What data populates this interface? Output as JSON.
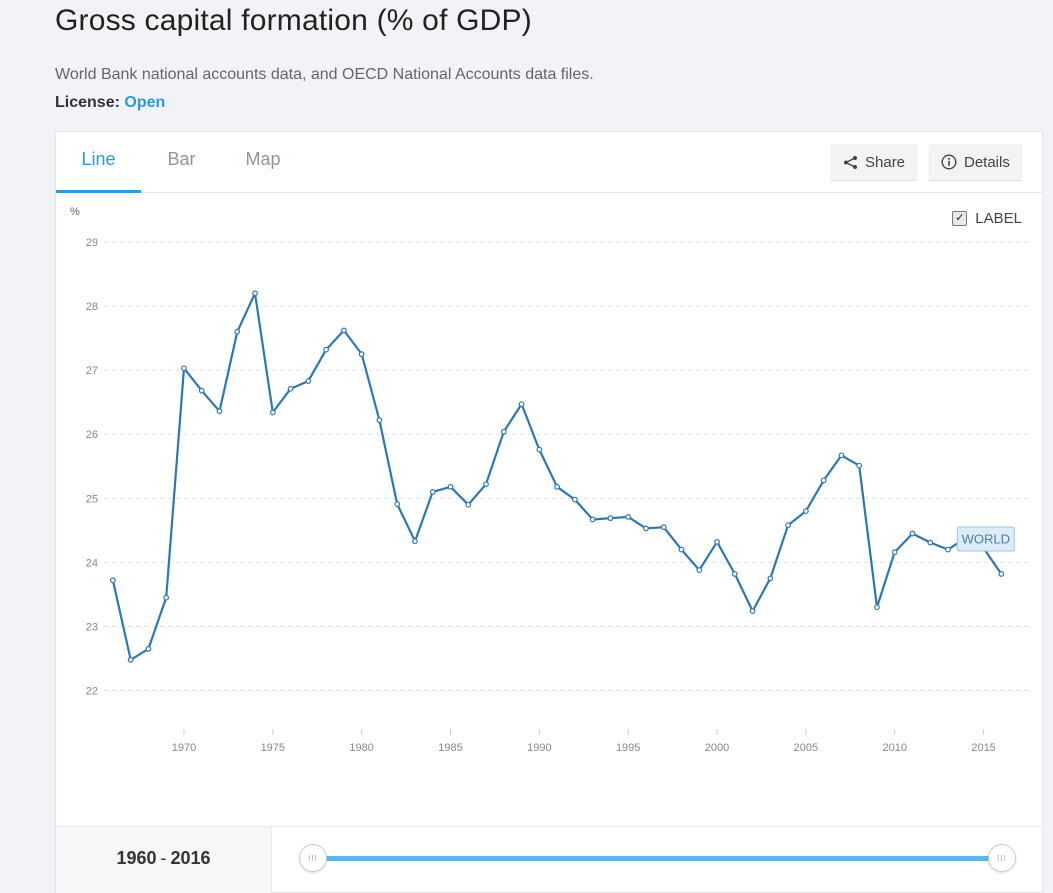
{
  "header": {
    "title": "Gross capital formation (% of GDP)",
    "source": "World Bank national accounts data, and OECD National Accounts data files.",
    "license_label": "License:",
    "license_value": "Open"
  },
  "tabs": [
    {
      "label": "Line",
      "active": true
    },
    {
      "label": "Bar",
      "active": false
    },
    {
      "label": "Map",
      "active": false
    }
  ],
  "actions": {
    "share_label": "Share",
    "share_icon": "share-icon",
    "details_label": "Details",
    "details_icon": "info-icon"
  },
  "label_toggle": {
    "label": "LABEL",
    "checked": true
  },
  "range": {
    "start": "1960",
    "end": "2016",
    "separator": "-"
  },
  "colors": {
    "accent": "#2d9ae0",
    "line": "#2e77b1",
    "slider": "#5db5ea"
  },
  "chart_data": {
    "type": "line",
    "ylabel": "%",
    "ylim": [
      21.4,
      29
    ],
    "xlim": [
      1965.5,
      2017.5
    ],
    "yticks": [
      22,
      23,
      24,
      25,
      26,
      27,
      28,
      29
    ],
    "xticks": [
      1970,
      1975,
      1980,
      1985,
      1990,
      1995,
      2000,
      2005,
      2010,
      2015
    ],
    "grid": true,
    "series": [
      {
        "name": "WORLD",
        "x": [
          1966,
          1967,
          1968,
          1969,
          1970,
          1971,
          1972,
          1973,
          1974,
          1975,
          1976,
          1977,
          1978,
          1979,
          1980,
          1981,
          1982,
          1983,
          1984,
          1985,
          1986,
          1987,
          1988,
          1989,
          1990,
          1991,
          1992,
          1993,
          1994,
          1995,
          1996,
          1997,
          1998,
          1999,
          2000,
          2001,
          2002,
          2003,
          2004,
          2005,
          2006,
          2007,
          2008,
          2009,
          2010,
          2011,
          2012,
          2013,
          2014,
          2015,
          2016
        ],
        "values": [
          23.72,
          22.48,
          22.65,
          23.45,
          27.03,
          26.68,
          26.36,
          27.6,
          28.2,
          26.34,
          26.71,
          26.83,
          27.32,
          27.62,
          27.25,
          26.22,
          24.91,
          24.33,
          25.1,
          25.18,
          24.9,
          25.22,
          26.04,
          26.47,
          25.76,
          25.18,
          24.98,
          24.67,
          24.69,
          24.71,
          24.53,
          24.55,
          24.2,
          23.88,
          24.32,
          23.82,
          23.24,
          23.75,
          24.58,
          24.8,
          25.28,
          25.67,
          25.51,
          23.3,
          24.16,
          24.45,
          24.31,
          24.2,
          24.38,
          24.22,
          23.82
        ]
      }
    ]
  }
}
